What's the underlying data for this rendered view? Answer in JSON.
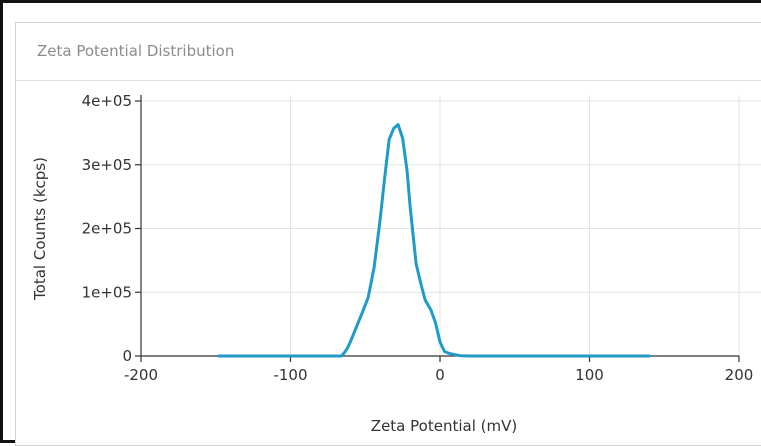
{
  "panel": {
    "title": "Zeta Potential Distribution"
  },
  "chart_data": {
    "type": "line",
    "title": "",
    "xlabel": "Zeta Potential (mV)",
    "ylabel": "Total Counts (kcps)",
    "xlim": [
      -200,
      200
    ],
    "ylim": [
      0,
      400000
    ],
    "x_ticks": [
      -200,
      -100,
      0,
      100,
      200
    ],
    "x_tick_labels": [
      "-200",
      "-100",
      "0",
      "100",
      "200"
    ],
    "y_ticks": [
      0,
      100000,
      200000,
      300000,
      400000
    ],
    "y_tick_labels": [
      "0",
      "1e+05",
      "2e+05",
      "3e+05",
      "4e+05"
    ],
    "grid": true,
    "line_color": "#1f9ac9",
    "series": [
      {
        "x": [
          -148,
          -110,
          -80,
          -66,
          -64,
          -62,
          -60,
          -56,
          -52,
          -48,
          -44,
          -40,
          -37,
          -34,
          -31,
          -28,
          -25,
          -22,
          -20,
          -18,
          -16,
          -13,
          -10,
          -6,
          -3,
          0,
          3,
          6,
          10,
          14,
          20,
          60,
          100,
          140
        ],
        "y": [
          0,
          0,
          0,
          0,
          5000,
          12000,
          22000,
          45000,
          68000,
          92000,
          140000,
          215000,
          280000,
          340000,
          357000,
          363000,
          342000,
          290000,
          235000,
          190000,
          145000,
          115000,
          88000,
          72000,
          52000,
          22000,
          7000,
          4000,
          2000,
          500,
          0,
          0,
          0,
          0
        ]
      }
    ]
  }
}
